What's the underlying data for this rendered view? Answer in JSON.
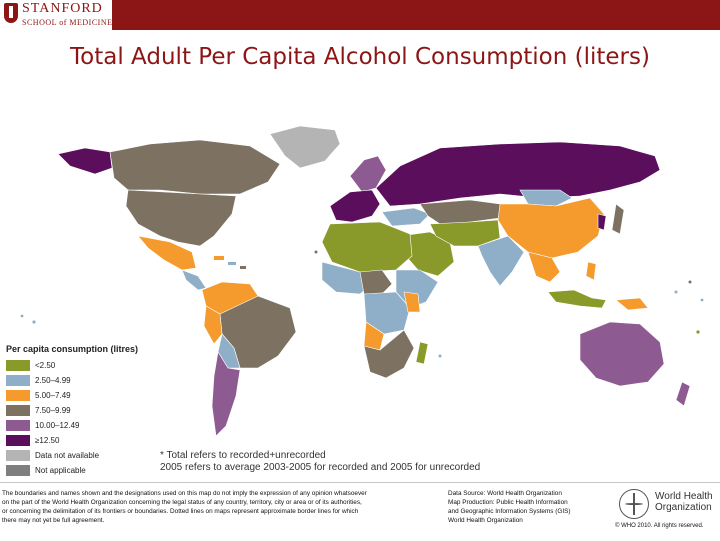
{
  "header": {
    "logo_line1": "STANFORD",
    "logo_line2": "SCHOOL of MEDICINE",
    "brand_color": "#8c1515"
  },
  "title": "Total Adult Per Capita Alcohol Consumption (liters)",
  "legend": {
    "title": "Per capita consumption (litres)",
    "items": [
      {
        "label": "<2.50",
        "color": "#8a9a2a"
      },
      {
        "label": "2.50–4.99",
        "color": "#8fafc8"
      },
      {
        "label": "5.00–7.49",
        "color": "#f59a2c"
      },
      {
        "label": "7.50–9.99",
        "color": "#7d7262"
      },
      {
        "label": "10.00–12.49",
        "color": "#8e5a92"
      },
      {
        "label": "≥12.50",
        "color": "#5a0e5c"
      },
      {
        "label": "Data not available",
        "color": "#b4b4b4"
      },
      {
        "label": "Not applicable",
        "color": "#7f7f7f"
      }
    ]
  },
  "note": {
    "line1": "*  Total refers to recorded+unrecorded",
    "line2": "2005 refers to average 2003-2005 for recorded and 2005 for unrecorded"
  },
  "footer": {
    "disclaimer": [
      "The boundaries and names shown and the designations used on this map do not imply the expression of any opinion whatsoever",
      "on the part of the World Health Organization concerning the legal status of any country, territory, city or area or of its authorities,",
      "or concerning the delimitation of its frontiers or boundaries. Dotted lines on maps represent approximate border lines for which",
      "there may not yet be full agreement."
    ],
    "source": [
      "Data Source: World Health Organization",
      "Map Production: Public Health Information",
      "and Geographic Information Systems (GIS)",
      "World Health Organization"
    ],
    "who_name_line1": "World Health",
    "who_name_line2": "Organization",
    "copyright": "© WHO 2010. All rights reserved."
  }
}
